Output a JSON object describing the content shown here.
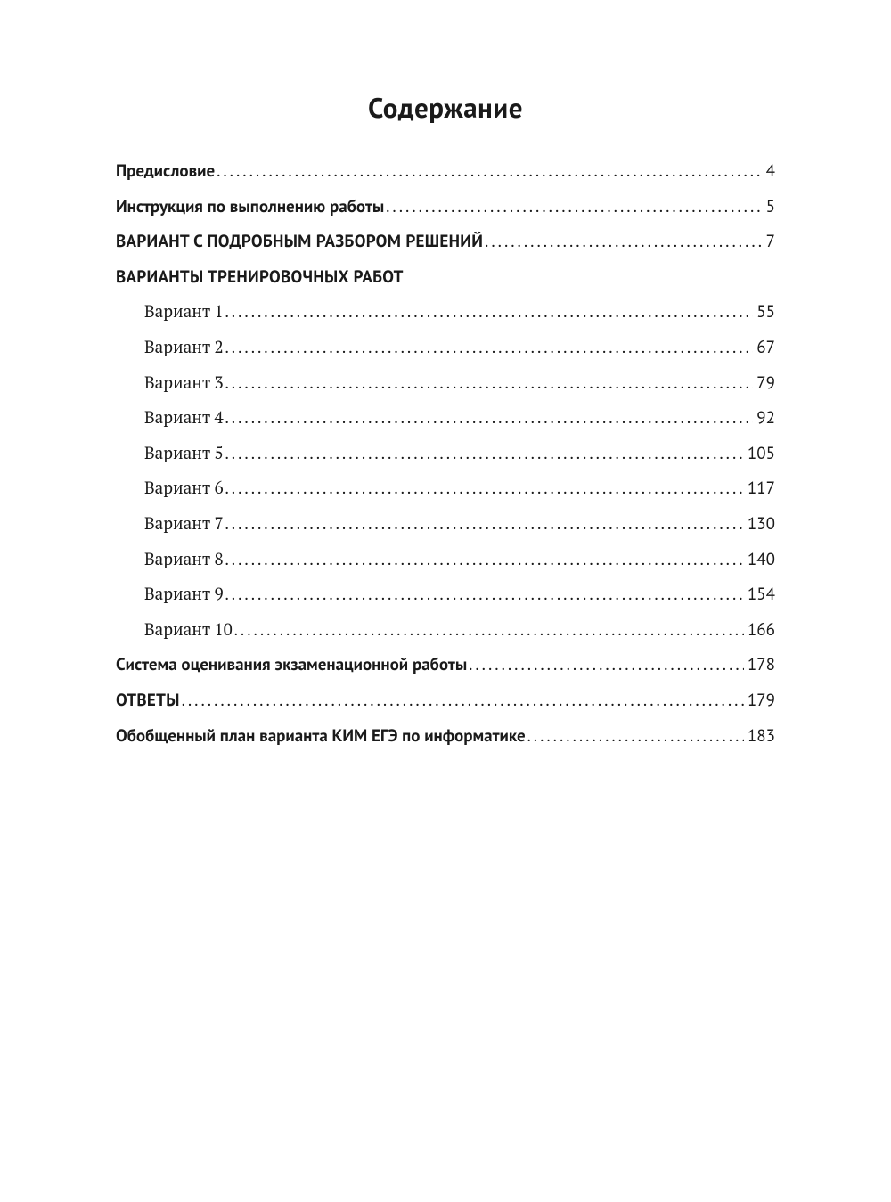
{
  "title": "Содержание",
  "entries": [
    {
      "label": "Предисловие",
      "page": "4",
      "bold": true,
      "uppercase": false,
      "indent": false
    },
    {
      "label": "Инструкция по выполнению работы",
      "page": "5",
      "bold": true,
      "uppercase": false,
      "indent": false
    },
    {
      "label": "ВАРИАНТ С ПОДРОБНЫМ РАЗБОРОМ РЕШЕНИЙ",
      "page": "7",
      "bold": true,
      "uppercase": true,
      "indent": false
    }
  ],
  "section_heading": "ВАРИАНТЫ ТРЕНИРОВОЧНЫХ РАБОТ",
  "variants": [
    {
      "label": "Вариант 1",
      "page": "55"
    },
    {
      "label": "Вариант 2",
      "page": "67"
    },
    {
      "label": "Вариант 3",
      "page": "79"
    },
    {
      "label": "Вариант 4",
      "page": "92"
    },
    {
      "label": "Вариант 5",
      "page": "105"
    },
    {
      "label": "Вариант 6",
      "page": "117"
    },
    {
      "label": "Вариант 7",
      "page": "130"
    },
    {
      "label": "Вариант 8",
      "page": "140"
    },
    {
      "label": "Вариант 9",
      "page": "154"
    },
    {
      "label": "Вариант 10",
      "page": "166"
    }
  ],
  "footer_entries": [
    {
      "label": "Система оценивания экзаменационной работы",
      "page": "178",
      "bold": true,
      "uppercase": false
    },
    {
      "label": "ОТВЕТЫ",
      "page": "179",
      "bold": true,
      "uppercase": true
    },
    {
      "label": "Обобщенный план варианта КИМ ЕГЭ по информатике",
      "page": "183",
      "bold": true,
      "uppercase": false
    }
  ],
  "colors": {
    "background": "#ffffff",
    "text": "#1a1a1a"
  },
  "typography": {
    "title_fontsize": 31,
    "entry_fontsize": 19,
    "title_fontweight": "bold"
  }
}
